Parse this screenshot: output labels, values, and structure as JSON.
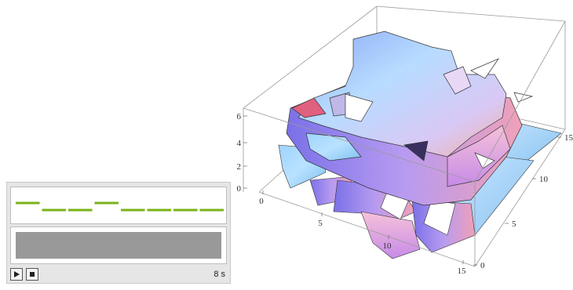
{
  "player": {
    "duration_label": "8 s",
    "waveform_levels": [
      1,
      0,
      0,
      1,
      0,
      0,
      0,
      0
    ],
    "waveform_color": "#7ab317",
    "progress_color": "#999999",
    "play_icon": "play-icon",
    "stop_icon": "stop-icon"
  },
  "plot3d": {
    "z_ticks": [
      "0",
      "2",
      "4",
      "6"
    ],
    "x_ticks": [
      "0",
      "5",
      "10",
      "15"
    ],
    "y_ticks": [
      "0",
      "5",
      "10",
      "15"
    ]
  }
}
